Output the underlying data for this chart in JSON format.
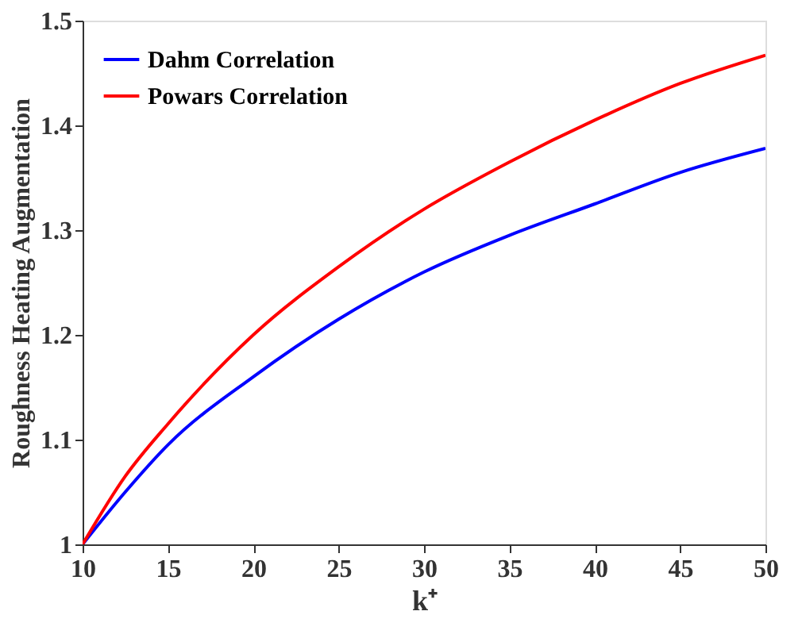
{
  "chart_data": {
    "type": "line",
    "xlabel": "k⁺",
    "ylabel": "Roughness Heating Augmentation",
    "x": [
      10,
      12.5,
      15,
      20,
      25,
      30,
      35,
      40,
      45,
      50
    ],
    "series": [
      {
        "name": "Dahm Correlation",
        "color": "#0000ff",
        "values": [
          1.0,
          1.05,
          1.095,
          1.16,
          1.215,
          1.26,
          1.295,
          1.325,
          1.355,
          1.378
        ]
      },
      {
        "name": "Powars Correlation",
        "color": "#ff0000",
        "values": [
          1.0,
          1.065,
          1.115,
          1.2,
          1.265,
          1.32,
          1.365,
          1.405,
          1.44,
          1.467
        ]
      }
    ],
    "xlim": [
      10,
      50
    ],
    "xticks": [
      10,
      15,
      20,
      25,
      30,
      35,
      40,
      45,
      50
    ],
    "ylim": [
      1,
      1.5
    ],
    "yticks": [
      1,
      1.1,
      1.2,
      1.3,
      1.4,
      1.5
    ],
    "grid": false,
    "legend": "top left",
    "line_style": "solid",
    "marker": "none"
  }
}
